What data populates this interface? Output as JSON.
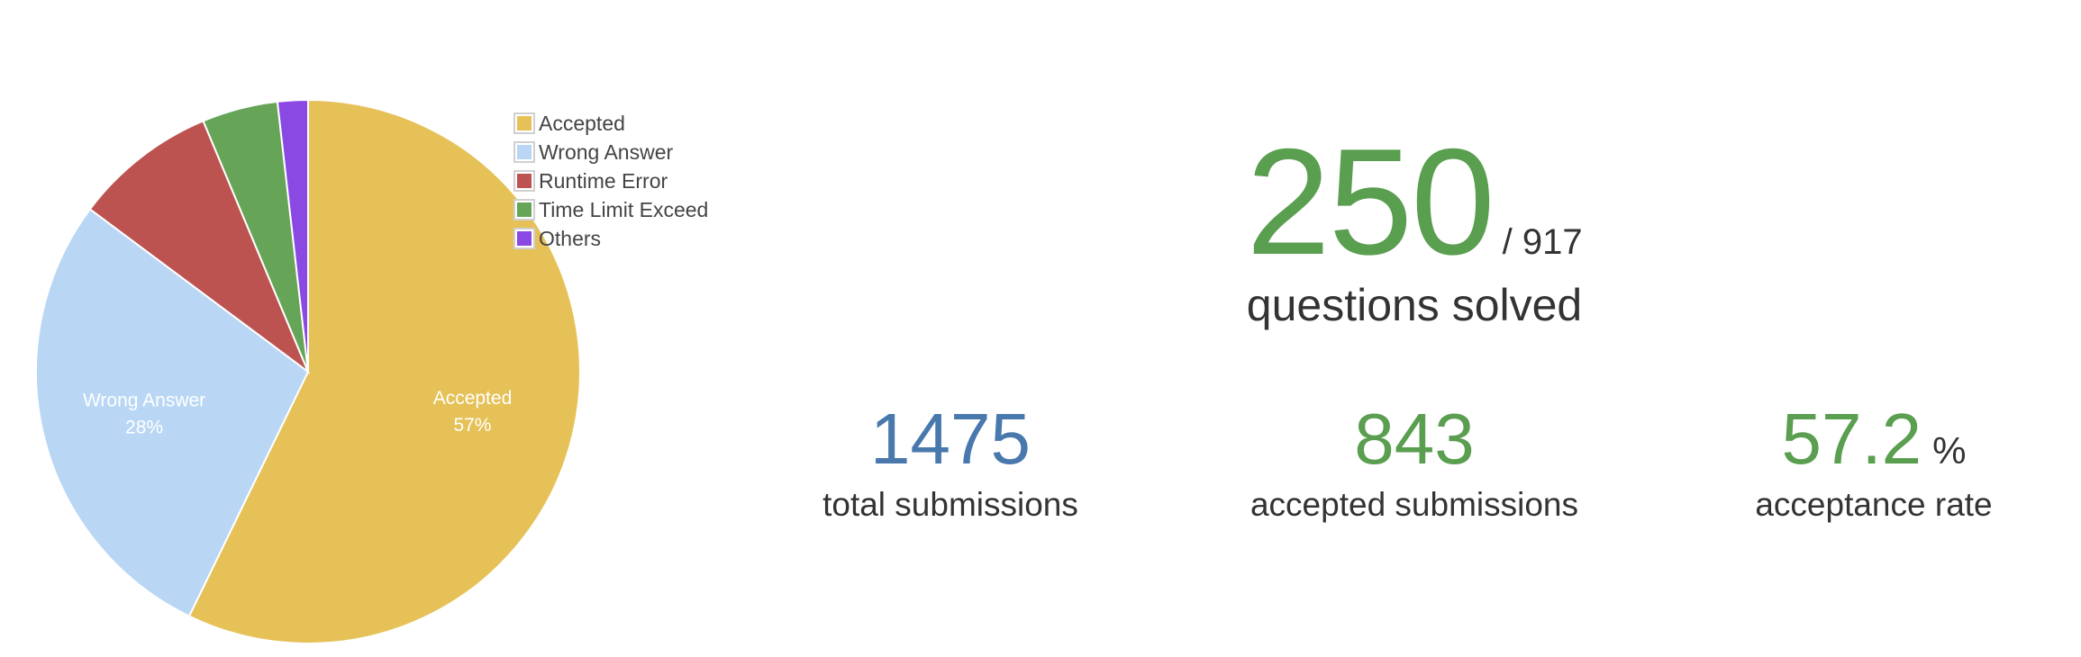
{
  "chart_data": {
    "type": "pie",
    "title": "",
    "legend_position": "top-right",
    "slices": [
      {
        "label": "Accepted",
        "value": 57.2,
        "color": "#e5c158",
        "data_label": "Accepted",
        "pct_label": "57%"
      },
      {
        "label": "Wrong Answer",
        "value": 28.0,
        "color": "#b9d7f4",
        "data_label": "Wrong Answer",
        "pct_label": "28%"
      },
      {
        "label": "Runtime Error",
        "value": 8.5,
        "color": "#bc5350",
        "data_label": "",
        "pct_label": ""
      },
      {
        "label": "Time Limit Exceed",
        "value": 4.5,
        "color": "#66a558",
        "data_label": "",
        "pct_label": ""
      },
      {
        "label": "Others",
        "value": 1.8,
        "color": "#8b49e4",
        "data_label": "",
        "pct_label": ""
      }
    ]
  },
  "stats": {
    "solved": "250",
    "total_questions": "/ 917",
    "solved_caption": "questions solved",
    "total_submissions": "1475",
    "total_submissions_caption": "total submissions",
    "accepted_submissions": "843",
    "accepted_submissions_caption": "accepted submissions",
    "acceptance_rate": "57.2",
    "acceptance_rate_unit": "%",
    "acceptance_rate_caption": "acceptance rate"
  },
  "colors": {
    "green": "#5a9e50",
    "blue": "#4978ad",
    "text": "#333333"
  }
}
